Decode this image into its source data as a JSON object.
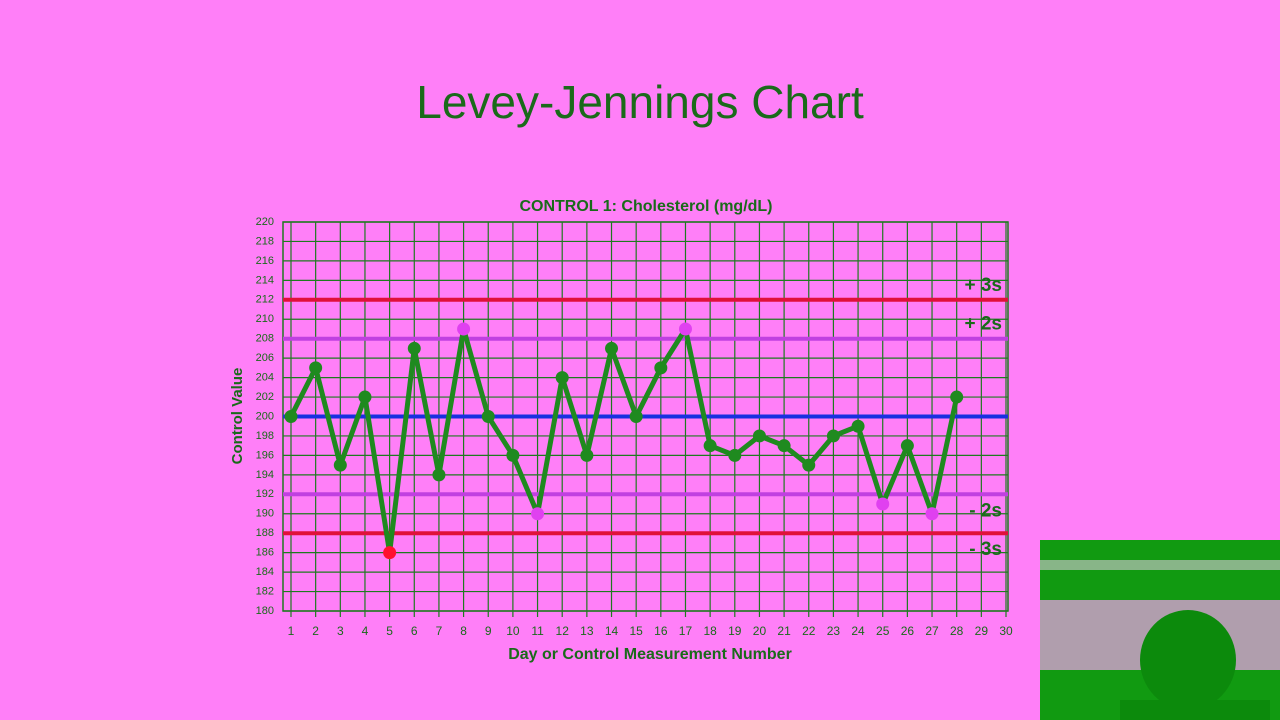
{
  "slide_title": "Levey-Jennings Chart",
  "chart_data": {
    "type": "line",
    "title": "CONTROL 1: Cholesterol (mg/dL)",
    "x_label": "Day or Control Measurement Number",
    "y_label": "Control Value",
    "x": [
      1,
      2,
      3,
      4,
      5,
      6,
      7,
      8,
      9,
      10,
      11,
      12,
      13,
      14,
      15,
      16,
      17,
      18,
      19,
      20,
      21,
      22,
      23,
      24,
      25,
      26,
      27,
      28
    ],
    "series": [
      {
        "color": "#1f8a1f",
        "values": [
          200,
          205,
          195,
          202,
          186,
          207,
          194,
          209,
          200,
          196,
          190,
          204,
          196,
          207,
          200,
          205,
          209,
          197,
          196,
          198,
          197,
          195,
          198,
          199,
          191,
          197,
          190,
          202
        ],
        "point_colors": [
          "#1f8a1f",
          "#1f8a1f",
          "#1f8a1f",
          "#1f8a1f",
          "#ff1030",
          "#1f8a1f",
          "#1f8a1f",
          "#e040f0",
          "#1f8a1f",
          "#1f8a1f",
          "#e040f0",
          "#1f8a1f",
          "#1f8a1f",
          "#1f8a1f",
          "#1f8a1f",
          "#1f8a1f",
          "#e040f0",
          "#1f8a1f",
          "#1f8a1f",
          "#1f8a1f",
          "#1f8a1f",
          "#1f8a1f",
          "#1f8a1f",
          "#1f8a1f",
          "#e040f0",
          "#1f8a1f",
          "#e040f0",
          "#1f8a1f"
        ]
      }
    ],
    "reference_lines": [
      {
        "value": 212,
        "label": "+ 3s",
        "color": "#e0103a"
      },
      {
        "value": 208,
        "label": "+ 2s",
        "color": "#c040e0"
      },
      {
        "value": 200,
        "color": "#1830e0"
      },
      {
        "value": 192,
        "label": "- 2s",
        "color": "#c040e0"
      },
      {
        "value": 188,
        "label": "- 3s",
        "color": "#e0103a"
      }
    ],
    "xlim": [
      1,
      30
    ],
    "xticks": [
      1,
      2,
      3,
      4,
      5,
      6,
      7,
      8,
      9,
      10,
      11,
      12,
      13,
      14,
      15,
      16,
      17,
      18,
      19,
      20,
      21,
      22,
      23,
      24,
      25,
      26,
      27,
      28,
      29,
      30
    ],
    "ylim": [
      180,
      220
    ],
    "yticks": [
      180,
      182,
      184,
      186,
      188,
      190,
      192,
      194,
      196,
      198,
      200,
      202,
      204,
      206,
      208,
      210,
      212,
      214,
      216,
      218,
      220
    ],
    "grid": true
  }
}
